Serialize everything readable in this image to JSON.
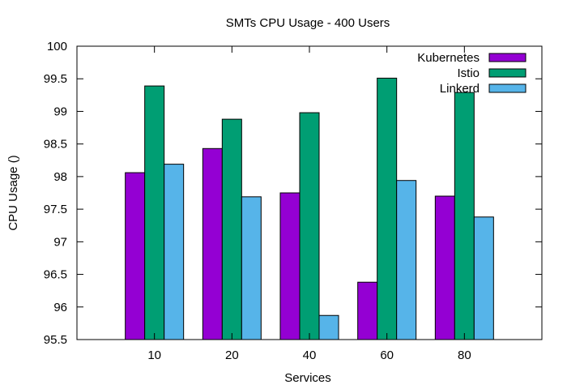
{
  "chart_data": {
    "type": "bar",
    "title": "SMTs CPU Usage - 400 Users",
    "xlabel": "Services",
    "ylabel": "CPU Usage ()",
    "categories": [
      "10",
      "20",
      "40",
      "60",
      "80"
    ],
    "ylim": [
      95.5,
      100
    ],
    "yticks": [
      "95.5",
      "96",
      "96.5",
      "97",
      "97.5",
      "98",
      "98.5",
      "99",
      "99.5",
      "100"
    ],
    "grid": false,
    "legend_position": "top-right",
    "series": [
      {
        "name": "Kubernetes",
        "color": "#9400d3",
        "values": [
          98.06,
          98.43,
          97.75,
          96.38,
          97.7
        ]
      },
      {
        "name": "Istio",
        "color": "#009e73",
        "values": [
          99.39,
          98.88,
          98.98,
          99.51,
          99.29
        ]
      },
      {
        "name": "Linkerd",
        "color": "#56b4e9",
        "values": [
          98.19,
          97.69,
          95.87,
          97.94,
          97.38
        ]
      }
    ]
  }
}
